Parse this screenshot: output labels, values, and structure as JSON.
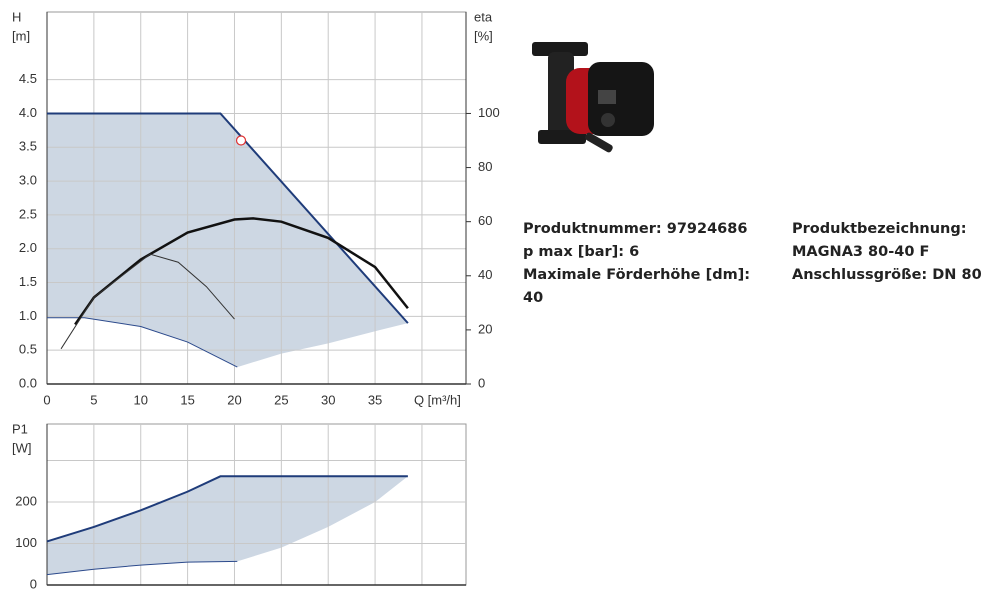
{
  "chart_data": [
    {
      "type": "line",
      "y_label": "H",
      "y_unit": "[m]",
      "y2_label": "eta",
      "y2_unit": "[%]",
      "xlim": [
        0,
        44.7
      ],
      "xticks": [
        0,
        5,
        10,
        15,
        20,
        25,
        30,
        35,
        {
          "value": 40,
          "label": "Q [m³/h]"
        }
      ],
      "ylim": [
        0,
        5.5
      ],
      "yticks": [
        {
          "value": 0,
          "label": "0.0"
        },
        0.5,
        {
          "value": 1,
          "label": "1.0"
        },
        1.5,
        {
          "value": 2,
          "label": "2.0"
        },
        2.5,
        {
          "value": 3,
          "label": "3.0"
        },
        3.5,
        {
          "value": 4,
          "label": "4.0"
        },
        4.5
      ],
      "y2lim": [
        0,
        137.5
      ],
      "y2ticks": [
        0,
        20,
        40,
        60,
        80,
        100
      ],
      "grid": true,
      "fill_color": "#cdd7e3",
      "series": [
        {
          "x": [
            0,
            18.5,
            38.5
          ],
          "values": [
            4.0,
            4.0,
            0.9
          ],
          "color": "#1f3c7a",
          "line_width": 2
        },
        {
          "x": [
            0,
            4,
            10,
            15,
            20.3
          ],
          "values": [
            0.98,
            0.98,
            0.85,
            0.62,
            0.25
          ],
          "color": "#2c4a8c",
          "line_width": 1
        },
        {
          "x": [
            20.3,
            25,
            30,
            35,
            38.5
          ],
          "values": [
            0.25,
            0.45,
            0.6,
            0.78,
            0.9
          ],
          "color": "#cdd7e3",
          "line_width": 0
        },
        {
          "x": [
            3,
            5,
            10,
            15,
            20,
            22,
            25,
            30,
            35,
            38.5
          ],
          "values": [
            22,
            32,
            46,
            56,
            60.8,
            61.2,
            60,
            54,
            43.2,
            28
          ],
          "color": "#111111",
          "line_width": 2.5,
          "axis": "y2"
        },
        {
          "x": [
            1.5,
            5,
            8,
            11,
            14,
            17,
            20
          ],
          "values": [
            13,
            32,
            40,
            48,
            45,
            36,
            24
          ],
          "color": "#333333",
          "line_width": 1,
          "axis": "y2"
        }
      ],
      "point": {
        "x": 20.7,
        "y": 3.6,
        "color": "#e03030"
      }
    },
    {
      "type": "line",
      "y_label": "P1",
      "y_unit": "[W]",
      "xlim": [
        0,
        44.7
      ],
      "xgrid": [
        0,
        5,
        10,
        15,
        20,
        25,
        30,
        35,
        40
      ],
      "ylim": [
        0,
        388
      ],
      "yticks": [
        0,
        100,
        200,
        {
          "value": 300,
          "label": null
        }
      ],
      "grid": true,
      "fill_color": "#cdd7e3",
      "series": [
        {
          "x": [
            0,
            5,
            10,
            15,
            18.5,
            38.5
          ],
          "values": [
            105,
            140,
            180,
            225,
            262,
            262
          ],
          "color": "#1f3c7a",
          "line_width": 2
        },
        {
          "x": [
            0,
            5,
            10,
            15,
            20.3
          ],
          "values": [
            25,
            38,
            48,
            55,
            57
          ],
          "color": "#2c4a8c",
          "line_width": 1
        },
        {
          "x": [
            20.3,
            25,
            30,
            35,
            38.5
          ],
          "values": [
            57,
            90,
            140,
            200,
            262
          ],
          "color": "#cdd7e3",
          "line_width": 0
        }
      ]
    }
  ],
  "product": {
    "left": [
      {
        "label": "Produktnummer:",
        "value": "97924686"
      },
      {
        "label": "p max [bar]:",
        "value": "6"
      },
      {
        "label": "Maximale Förderhöhe [dm]:",
        "value": "40"
      }
    ],
    "right": [
      {
        "label": "Produktbezeichnung:",
        "value": "MAGNA3 80-40 F"
      },
      {
        "label": "Anschlussgröße:",
        "value": "DN 80"
      }
    ]
  }
}
